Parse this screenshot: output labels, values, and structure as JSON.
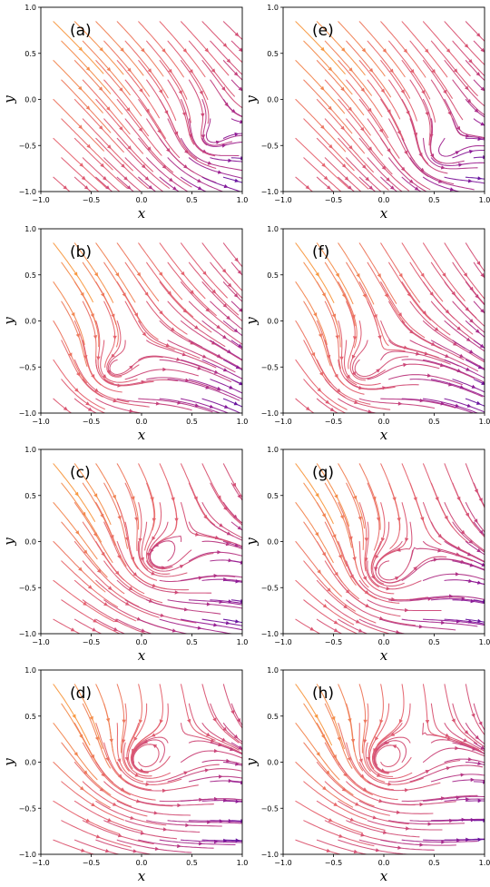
{
  "chart_data": [
    {
      "type": "streamplot",
      "panel_label": "(a)",
      "xlabel": "x",
      "ylabel": "y",
      "xlim": [
        -1.0,
        1.0
      ],
      "ylim": [
        -1.0,
        1.0
      ],
      "xticks": [
        "−1.0",
        "−0.5",
        "0.0",
        "0.5",
        "1.0"
      ],
      "yticks": [
        "−1.0",
        "−0.5",
        "0.0",
        "0.5",
        "1.0"
      ],
      "colormap": "plasma",
      "vortex_center": [
        0.65,
        -0.45
      ],
      "swirl": 0.0
    },
    {
      "type": "streamplot",
      "panel_label": "(b)",
      "xlabel": "x",
      "ylabel": "y",
      "xlim": [
        -1.0,
        1.0
      ],
      "ylim": [
        -1.0,
        1.0
      ],
      "xticks": [
        "−1.0",
        "−0.5",
        "0.0",
        "0.5",
        "1.0"
      ],
      "yticks": [
        "−1.0",
        "−0.5",
        "0.0",
        "0.5",
        "1.0"
      ],
      "colormap": "plasma",
      "vortex_center": [
        -0.3,
        -0.55
      ],
      "swirl": 0.15
    },
    {
      "type": "streamplot",
      "panel_label": "(c)",
      "xlabel": "x",
      "ylabel": "y",
      "xlim": [
        -1.0,
        1.0
      ],
      "ylim": [
        -1.0,
        1.0
      ],
      "xticks": [
        "−1.0",
        "−0.5",
        "0.0",
        "0.5",
        "1.0"
      ],
      "yticks": [
        "−1.0",
        "−0.5",
        "0.0",
        "0.5",
        "1.0"
      ],
      "colormap": "plasma",
      "vortex_center": [
        0.15,
        -0.2
      ],
      "swirl": 0.3
    },
    {
      "type": "streamplot",
      "panel_label": "(d)",
      "xlabel": "x",
      "ylabel": "y",
      "xlim": [
        -1.0,
        1.0
      ],
      "ylim": [
        -1.0,
        1.0
      ],
      "xticks": [
        "−1.0",
        "−0.5",
        "0.0",
        "0.5",
        "1.0"
      ],
      "yticks": [
        "−1.0",
        "−0.5",
        "0.0",
        "0.5",
        "1.0"
      ],
      "colormap": "plasma",
      "vortex_center": [
        0.0,
        0.0
      ],
      "swirl": 0.45
    },
    {
      "type": "streamplot",
      "panel_label": "(e)",
      "xlabel": "x",
      "ylabel": "y",
      "xlim": [
        -1.0,
        1.0
      ],
      "ylim": [
        -1.0,
        1.0
      ],
      "xticks": [
        "−1.0",
        "−0.5",
        "0.0",
        "0.5",
        "1.0"
      ],
      "yticks": [
        "−1.0",
        "−0.5",
        "0.0",
        "0.5",
        "1.0"
      ],
      "colormap": "plasma",
      "vortex_center": [
        0.55,
        -0.6
      ],
      "swirl": 0.05
    },
    {
      "type": "streamplot",
      "panel_label": "(f)",
      "xlabel": "x",
      "ylabel": "y",
      "xlim": [
        -1.0,
        1.0
      ],
      "ylim": [
        -1.0,
        1.0
      ],
      "xticks": [
        "−1.0",
        "−0.5",
        "0.0",
        "0.5",
        "1.0"
      ],
      "yticks": [
        "−1.0",
        "−0.5",
        "0.0",
        "0.5",
        "1.0"
      ],
      "colormap": "plasma",
      "vortex_center": [
        -0.25,
        -0.55
      ],
      "swirl": 0.2
    },
    {
      "type": "streamplot",
      "panel_label": "(g)",
      "xlabel": "x",
      "ylabel": "y",
      "xlim": [
        -1.0,
        1.0
      ],
      "ylim": [
        -1.0,
        1.0
      ],
      "xticks": [
        "−1.0",
        "−0.5",
        "0.0",
        "0.5",
        "1.0"
      ],
      "yticks": [
        "−1.0",
        "−0.5",
        "0.0",
        "0.5",
        "1.0"
      ],
      "colormap": "plasma",
      "vortex_center": [
        0.0,
        -0.35
      ],
      "swirl": 0.35
    },
    {
      "type": "streamplot",
      "panel_label": "(h)",
      "xlabel": "x",
      "ylabel": "y",
      "xlim": [
        -1.0,
        1.0
      ],
      "ylim": [
        -1.0,
        1.0
      ],
      "xticks": [
        "−1.0",
        "−0.5",
        "0.0",
        "0.5",
        "1.0"
      ],
      "yticks": [
        "−1.0",
        "−0.5",
        "0.0",
        "0.5",
        "1.0"
      ],
      "colormap": "plasma",
      "vortex_center": [
        0.0,
        0.0
      ],
      "swirl": 0.5
    }
  ]
}
